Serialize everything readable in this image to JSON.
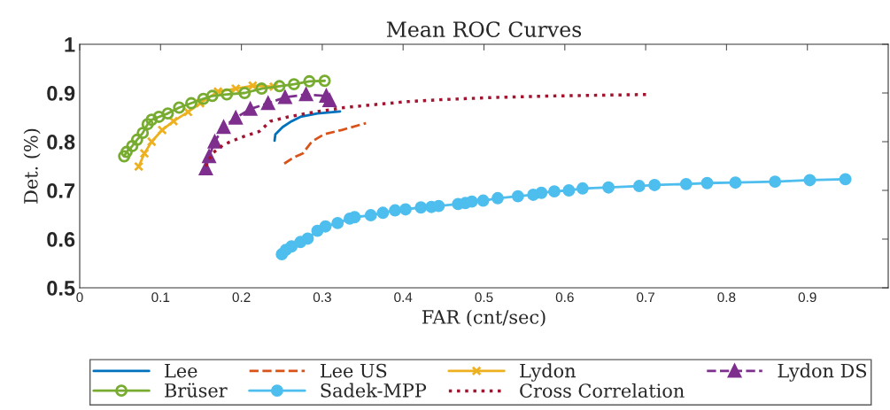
{
  "chart_data": {
    "type": "line",
    "title": "Mean ROC Curves",
    "xlabel": "FAR (cnt/sec)",
    "ylabel": "Det. (%)",
    "xlim": [
      0,
      1
    ],
    "xticks": [
      0,
      0.1,
      0.2,
      0.3,
      0.4,
      0.5,
      0.6,
      0.7,
      0.8,
      0.9
    ],
    "ylim": [
      0.5,
      1
    ],
    "yticks": [
      0.5,
      0.6,
      0.7,
      0.8,
      0.9,
      1
    ],
    "grid": false,
    "legend": "bottom",
    "series": [
      {
        "name": "Lee",
        "color": "#0072bd",
        "marker": "none",
        "line_style": "solid",
        "x": [
          0.241,
          0.242,
          0.251,
          0.262,
          0.273,
          0.294,
          0.322
        ],
        "values": [
          0.802,
          0.815,
          0.83,
          0.842,
          0.851,
          0.858,
          0.862
        ]
      },
      {
        "name": "Lee US",
        "color": "#d95319",
        "marker": "none",
        "line_style": "dashed",
        "x": [
          0.253,
          0.264,
          0.276,
          0.287,
          0.302,
          0.324,
          0.354
        ],
        "values": [
          0.755,
          0.767,
          0.776,
          0.8,
          0.815,
          0.824,
          0.838
        ]
      },
      {
        "name": "Lydon",
        "color": "#edb120",
        "marker": "cross",
        "line_style": "solid",
        "x": [
          0.073,
          0.08,
          0.089,
          0.102,
          0.116,
          0.134,
          0.149,
          0.171,
          0.193,
          0.214,
          0.24
        ],
        "values": [
          0.749,
          0.776,
          0.8,
          0.824,
          0.842,
          0.861,
          0.879,
          0.903,
          0.909,
          0.915,
          0.913
        ]
      },
      {
        "name": "Lydon DS",
        "color": "#7e2f8e",
        "marker": "triangle",
        "line_style": "dashed",
        "x": [
          0.156,
          0.16,
          0.167,
          0.178,
          0.193,
          0.211,
          0.233,
          0.254,
          0.28,
          0.305,
          0.309
        ],
        "values": [
          0.745,
          0.77,
          0.8,
          0.83,
          0.849,
          0.867,
          0.879,
          0.891,
          0.897,
          0.894,
          0.885
        ]
      },
      {
        "name": "Brüser",
        "color": "#77ac30",
        "marker": "circle",
        "line_style": "solid",
        "x": [
          0.055,
          0.058,
          0.065,
          0.071,
          0.078,
          0.084,
          0.089,
          0.098,
          0.109,
          0.123,
          0.138,
          0.153,
          0.164,
          0.182,
          0.204,
          0.225,
          0.247,
          0.265,
          0.284,
          0.303
        ],
        "values": [
          0.77,
          0.779,
          0.791,
          0.804,
          0.818,
          0.836,
          0.845,
          0.851,
          0.858,
          0.87,
          0.879,
          0.888,
          0.894,
          0.897,
          0.9,
          0.909,
          0.914,
          0.918,
          0.924,
          0.925
        ]
      },
      {
        "name": "Sadek-MPP",
        "color": "#4dbeee",
        "marker": "circle",
        "line_style": "solid",
        "x": [
          0.25,
          0.255,
          0.262,
          0.273,
          0.282,
          0.294,
          0.304,
          0.319,
          0.334,
          0.34,
          0.36,
          0.375,
          0.39,
          0.403,
          0.422,
          0.435,
          0.444,
          0.468,
          0.477,
          0.485,
          0.499,
          0.517,
          0.542,
          0.561,
          0.571,
          0.587,
          0.605,
          0.622,
          0.654,
          0.692,
          0.711,
          0.75,
          0.776,
          0.811,
          0.86,
          0.903,
          0.947
        ],
        "values": [
          0.569,
          0.578,
          0.585,
          0.594,
          0.601,
          0.617,
          0.626,
          0.633,
          0.642,
          0.645,
          0.649,
          0.654,
          0.659,
          0.661,
          0.665,
          0.666,
          0.668,
          0.672,
          0.674,
          0.677,
          0.679,
          0.684,
          0.688,
          0.691,
          0.695,
          0.698,
          0.7,
          0.704,
          0.706,
          0.709,
          0.711,
          0.713,
          0.715,
          0.716,
          0.718,
          0.721,
          0.723
        ]
      },
      {
        "name": "Cross Correlation",
        "color": "#a2142f",
        "marker": "none",
        "line_style": "dotted",
        "x": [
          0.156,
          0.164,
          0.178,
          0.2,
          0.222,
          0.236,
          0.258,
          0.291,
          0.327,
          0.364,
          0.403,
          0.443,
          0.516,
          0.589,
          0.705
        ],
        "values": [
          0.749,
          0.776,
          0.794,
          0.809,
          0.821,
          0.842,
          0.851,
          0.861,
          0.87,
          0.876,
          0.882,
          0.886,
          0.891,
          0.894,
          0.897
        ]
      }
    ]
  }
}
